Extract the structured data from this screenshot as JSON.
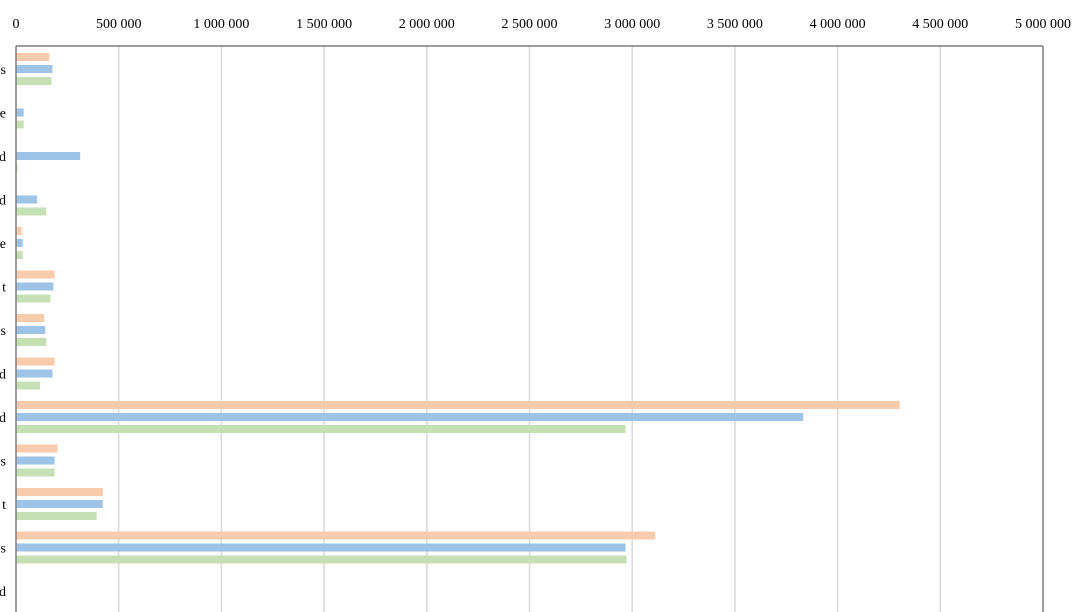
{
  "chart_data": {
    "type": "bar",
    "orientation": "horizontal",
    "x_axis_position": "top",
    "grid": true,
    "xlim": [
      0,
      5000000
    ],
    "x_ticks": [
      0,
      500000,
      1000000,
      1500000,
      2000000,
      2500000,
      3000000,
      3500000,
      4000000,
      4500000,
      5000000
    ],
    "x_tick_labels": [
      "0",
      "500 000",
      "1 000 000",
      "1 500 000",
      "2 000 000",
      "2 500 000",
      "3 000 000",
      "3 500 000",
      "4 000 000",
      "4 500 000",
      "5 000 000"
    ],
    "categories": [
      "s",
      "e",
      "d",
      "d",
      "e",
      "t",
      "s",
      "d",
      "d",
      "s",
      "t",
      "s",
      "d"
    ],
    "series": [
      {
        "color": "#f8cbad",
        "values": [
          160000,
          0,
          0,
          0,
          25000,
          185000,
          135000,
          185000,
          4300000,
          200000,
          420000,
          3110000,
          0
        ]
      },
      {
        "color": "#9dc3e6",
        "values": [
          175000,
          35000,
          310000,
          100000,
          30000,
          180000,
          140000,
          175000,
          3830000,
          185000,
          420000,
          2965000,
          0
        ]
      },
      {
        "color": "#c5e0b4",
        "values": [
          170000,
          35000,
          5000,
          145000,
          30000,
          165000,
          145000,
          115000,
          2965000,
          185000,
          390000,
          2970000,
          0
        ]
      }
    ]
  }
}
